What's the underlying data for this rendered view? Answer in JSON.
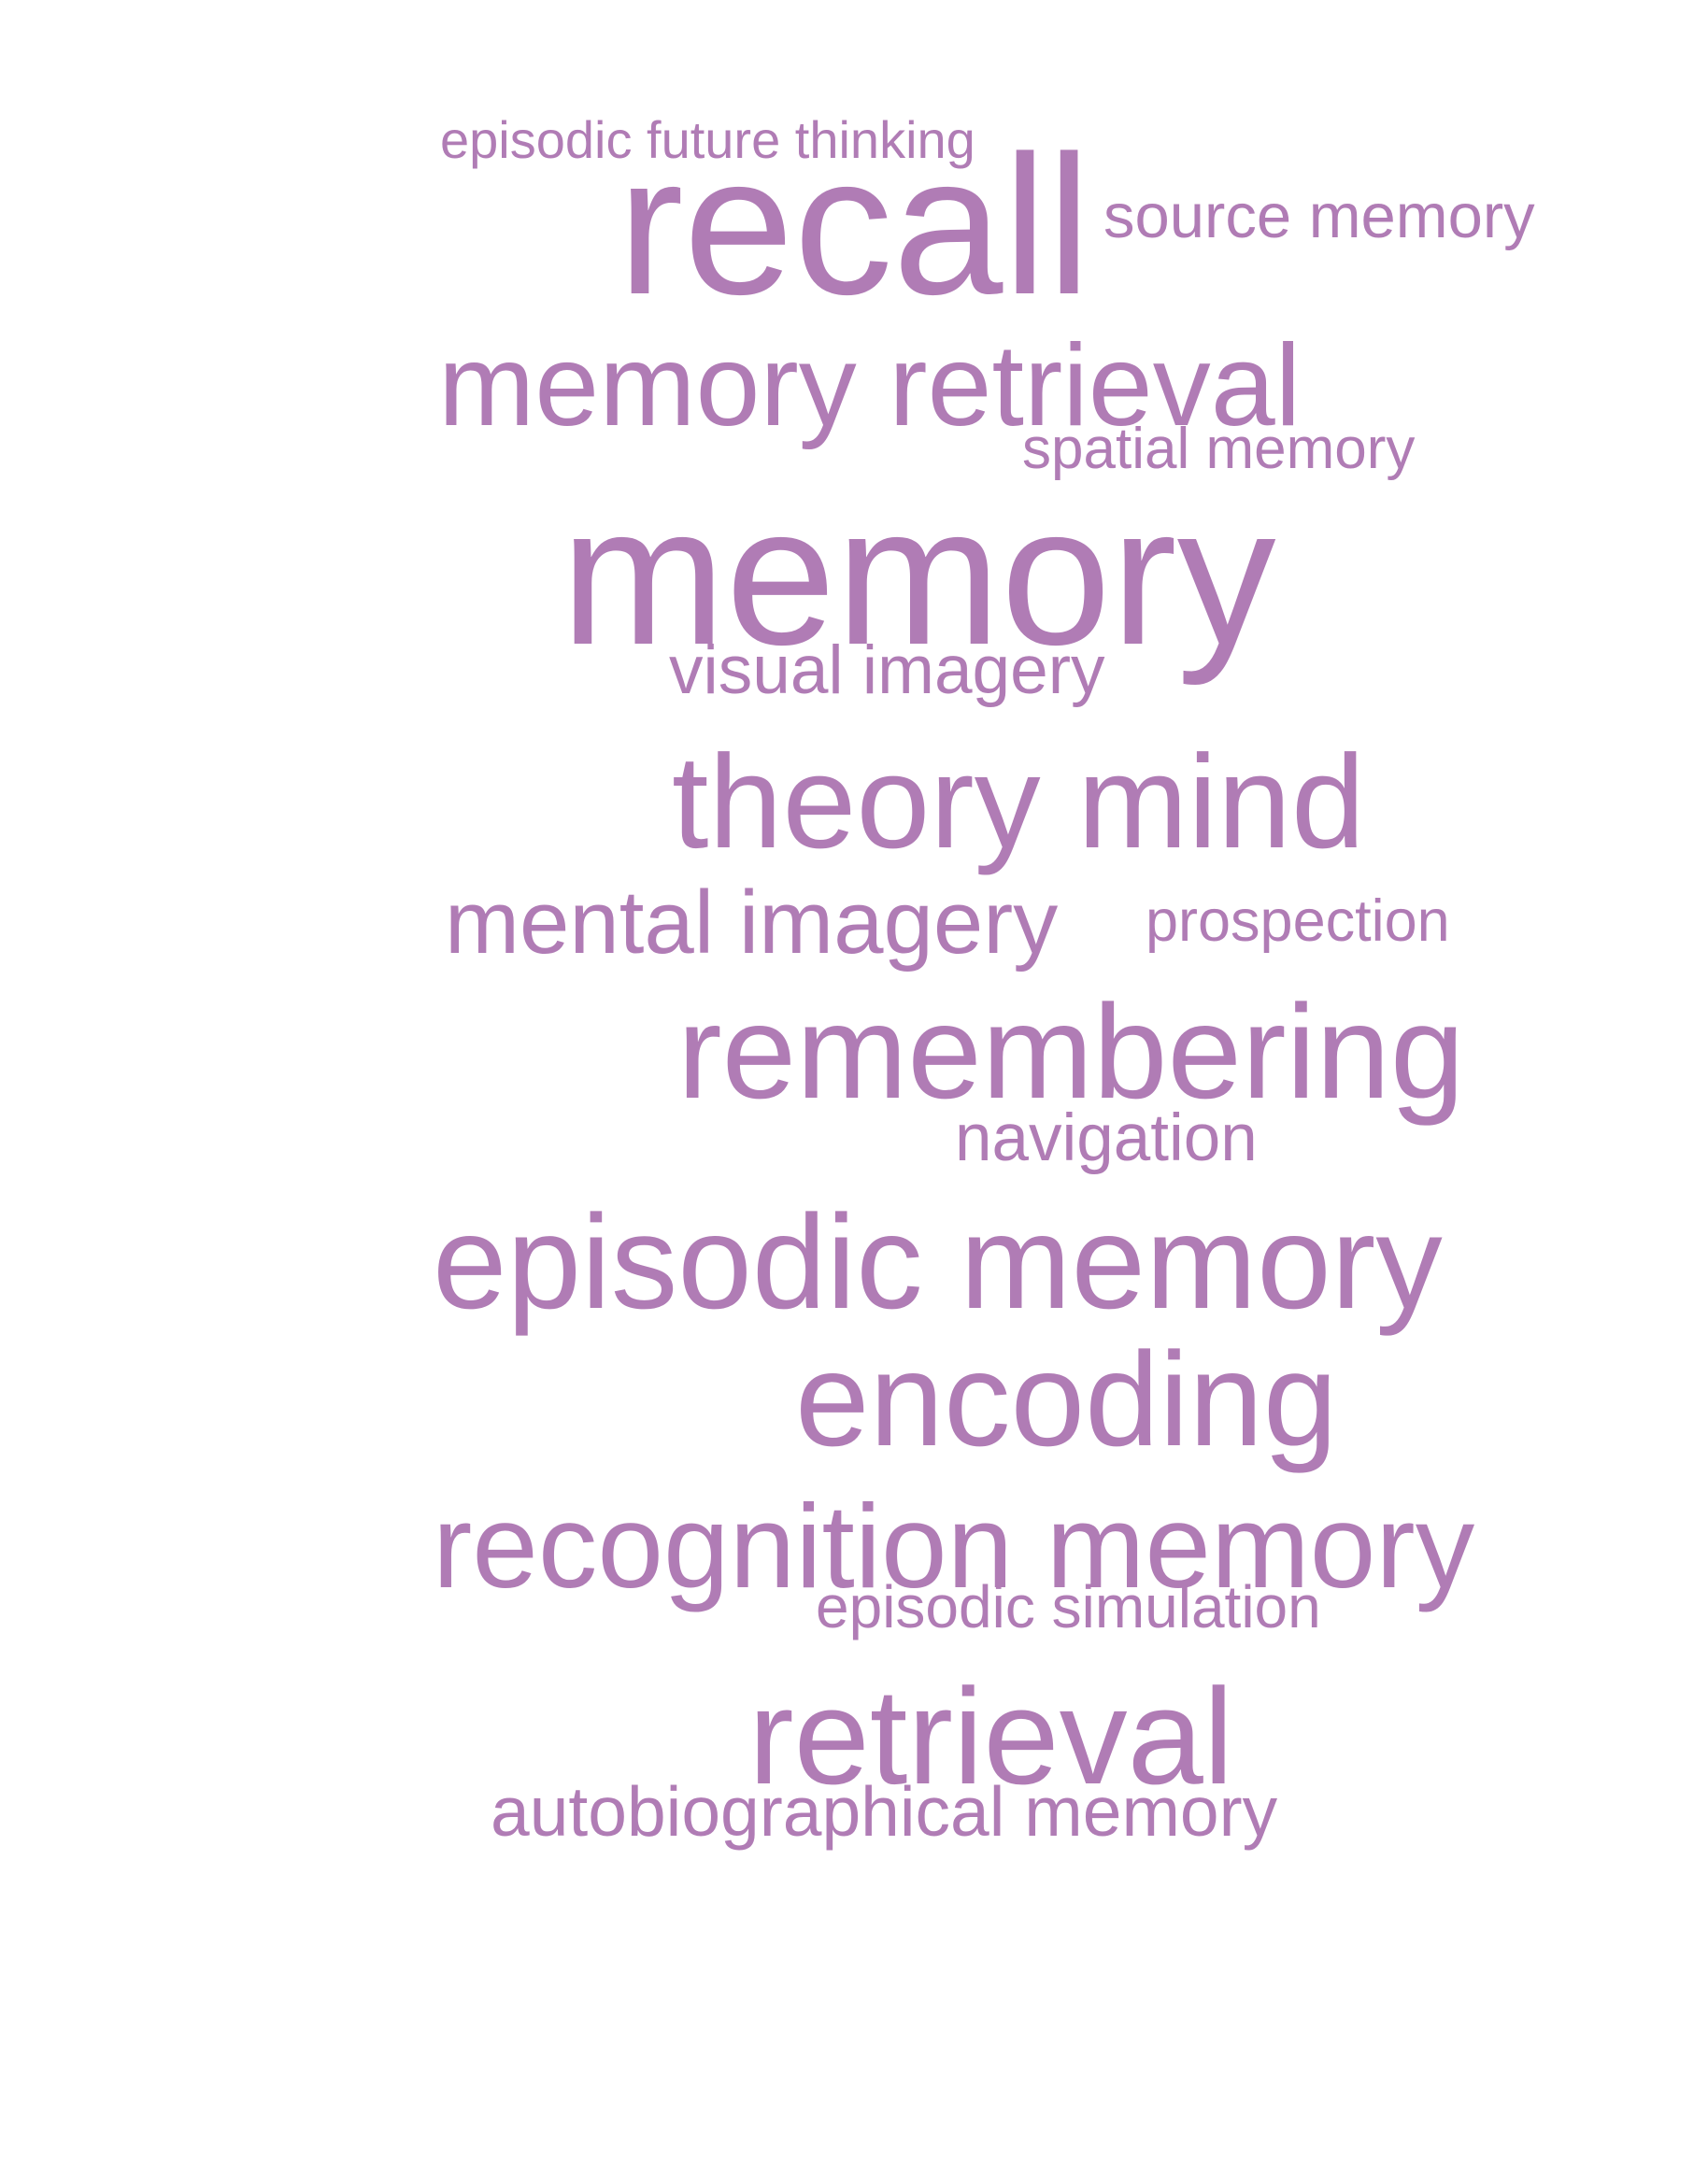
{
  "cloud": {
    "color": "#b07cb5",
    "words": [
      "episodic future thinking",
      "recall",
      "source memory",
      "memory retrieval",
      "spatial memory",
      "memory",
      "visual imagery",
      "theory mind",
      "mental imagery",
      "prospection",
      "remembering",
      "navigation",
      "episodic memory",
      "encoding",
      "recognition memory",
      "episodic simulation",
      "retrieval",
      "autobiographical memory"
    ]
  }
}
